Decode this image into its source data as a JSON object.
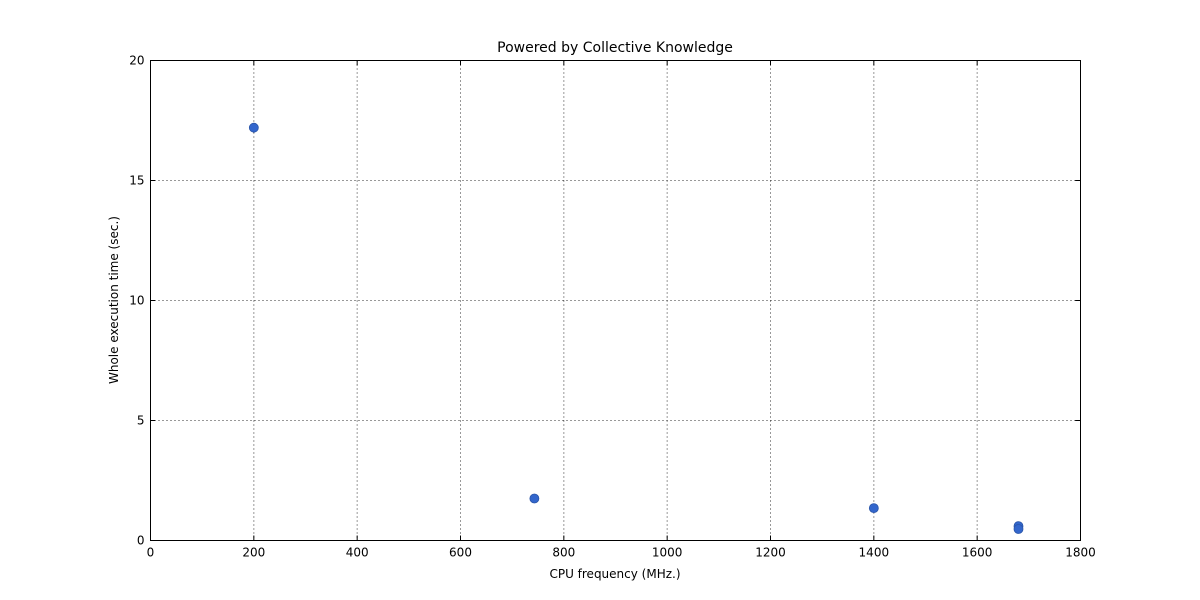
{
  "chart_data": {
    "type": "scatter",
    "title": "Powered by Collective Knowledge",
    "xlabel": "CPU frequency (MHz.)",
    "ylabel": "Whole execution time (sec.)",
    "xlim": [
      0,
      1800
    ],
    "ylim": [
      0,
      20
    ],
    "xticks": [
      0,
      200,
      400,
      600,
      800,
      1000,
      1200,
      1400,
      1600,
      1800
    ],
    "yticks": [
      0,
      5,
      10,
      15,
      20
    ],
    "grid": true,
    "series": [
      {
        "name": "points",
        "color": "#3366cc",
        "x": [
          200,
          743,
          1400,
          1680,
          1680
        ],
        "y": [
          17.2,
          1.75,
          1.35,
          0.6,
          0.48
        ]
      }
    ]
  }
}
